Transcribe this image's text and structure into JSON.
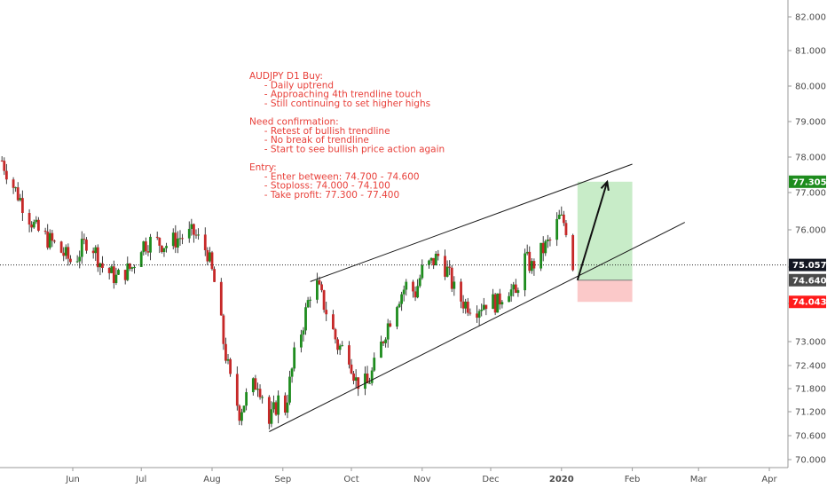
{
  "chart_data": {
    "type": "candlestick",
    "y_axis": {
      "ticks": [
        {
          "label": "82.000",
          "value": 82.0
        },
        {
          "label": "81.000",
          "value": 81.0
        },
        {
          "label": "80.000",
          "value": 80.0
        },
        {
          "label": "79.000",
          "value": 79.0
        },
        {
          "label": "78.000",
          "value": 78.0
        },
        {
          "label": "77.000",
          "value": 77.0
        },
        {
          "label": "76.000",
          "value": 76.0
        },
        {
          "label": "75.000",
          "value": 75.0
        },
        {
          "label": "74.000",
          "value": 74.0
        },
        {
          "label": "73.000",
          "value": 73.0
        },
        {
          "label": "72.400",
          "value": 72.4
        },
        {
          "label": "71.800",
          "value": 71.8
        },
        {
          "label": "71.200",
          "value": 71.2
        },
        {
          "label": "70.600",
          "value": 70.6
        },
        {
          "label": "70.000",
          "value": 70.0
        }
      ]
    },
    "x_axis": {
      "ticks": [
        {
          "label": "Jun",
          "date": "2019-06-01",
          "bold": false
        },
        {
          "label": "Jul",
          "date": "2019-07-01",
          "bold": false
        },
        {
          "label": "Aug",
          "date": "2019-08-01",
          "bold": false
        },
        {
          "label": "Sep",
          "date": "2019-09-01",
          "bold": false
        },
        {
          "label": "Oct",
          "date": "2019-10-01",
          "bold": false
        },
        {
          "label": "Nov",
          "date": "2019-11-01",
          "bold": false
        },
        {
          "label": "Dec",
          "date": "2019-12-01",
          "bold": false
        },
        {
          "label": "2020",
          "date": "2020-01-01",
          "bold": true
        },
        {
          "label": "Feb",
          "date": "2020-02-01",
          "bold": false
        },
        {
          "label": "Mar",
          "date": "2020-03-01",
          "bold": false
        },
        {
          "label": "Apr",
          "date": "2020-04-01",
          "bold": false
        }
      ]
    },
    "price_path": [
      {
        "date": "2019-05-01",
        "close": 77.9
      },
      {
        "date": "2019-05-05",
        "close": 77.3
      },
      {
        "date": "2019-05-10",
        "close": 76.7
      },
      {
        "date": "2019-05-16",
        "close": 76.0
      },
      {
        "date": "2019-05-24",
        "close": 75.6
      },
      {
        "date": "2019-06-01",
        "close": 75.1
      },
      {
        "date": "2019-06-08",
        "close": 75.8
      },
      {
        "date": "2019-06-14",
        "close": 75.0
      },
      {
        "date": "2019-06-20",
        "close": 74.7
      },
      {
        "date": "2019-06-27",
        "close": 75.0
      },
      {
        "date": "2019-07-01",
        "close": 75.6
      },
      {
        "date": "2019-07-06",
        "close": 75.7
      },
      {
        "date": "2019-07-12",
        "close": 75.6
      },
      {
        "date": "2019-07-18",
        "close": 75.8
      },
      {
        "date": "2019-07-24",
        "close": 75.9
      },
      {
        "date": "2019-07-30",
        "close": 75.4
      },
      {
        "date": "2019-08-03",
        "close": 74.3
      },
      {
        "date": "2019-08-06",
        "close": 73.0
      },
      {
        "date": "2019-08-09",
        "close": 72.0
      },
      {
        "date": "2019-08-13",
        "close": 71.2
      },
      {
        "date": "2019-08-17",
        "close": 71.7
      },
      {
        "date": "2019-08-21",
        "close": 72.0
      },
      {
        "date": "2019-08-24",
        "close": 71.5
      },
      {
        "date": "2019-08-26",
        "close": 70.9
      },
      {
        "date": "2019-08-30",
        "close": 71.5
      },
      {
        "date": "2019-09-02",
        "close": 71.3
      },
      {
        "date": "2019-09-06",
        "close": 72.6
      },
      {
        "date": "2019-09-10",
        "close": 73.5
      },
      {
        "date": "2019-09-13",
        "close": 74.3
      },
      {
        "date": "2019-09-16",
        "close": 74.5
      },
      {
        "date": "2019-09-20",
        "close": 73.8
      },
      {
        "date": "2019-09-25",
        "close": 72.9
      },
      {
        "date": "2019-09-30",
        "close": 72.7
      },
      {
        "date": "2019-10-03",
        "close": 72.0
      },
      {
        "date": "2019-10-08",
        "close": 71.9
      },
      {
        "date": "2019-10-12",
        "close": 72.5
      },
      {
        "date": "2019-10-16",
        "close": 73.3
      },
      {
        "date": "2019-10-21",
        "close": 74.1
      },
      {
        "date": "2019-10-25",
        "close": 74.5
      },
      {
        "date": "2019-10-29",
        "close": 74.3
      },
      {
        "date": "2019-11-01",
        "close": 74.9
      },
      {
        "date": "2019-11-05",
        "close": 75.1
      },
      {
        "date": "2019-11-08",
        "close": 75.3
      },
      {
        "date": "2019-11-12",
        "close": 74.9
      },
      {
        "date": "2019-11-16",
        "close": 74.2
      },
      {
        "date": "2019-11-20",
        "close": 74.0
      },
      {
        "date": "2019-11-25",
        "close": 73.9
      },
      {
        "date": "2019-11-30",
        "close": 74.1
      },
      {
        "date": "2019-12-04",
        "close": 74.0
      },
      {
        "date": "2019-12-08",
        "close": 74.5
      },
      {
        "date": "2019-12-12",
        "close": 74.2
      },
      {
        "date": "2019-12-15",
        "close": 75.3
      },
      {
        "date": "2019-12-19",
        "close": 75.0
      },
      {
        "date": "2019-12-23",
        "close": 75.4
      },
      {
        "date": "2019-12-27",
        "close": 75.7
      },
      {
        "date": "2019-12-31",
        "close": 76.3
      },
      {
        "date": "2020-01-02",
        "close": 76.2
      },
      {
        "date": "2020-01-04",
        "close": 75.9
      },
      {
        "date": "2020-01-06",
        "close": 75.057
      }
    ],
    "current_price_line": {
      "value": 75.057,
      "label": "75.057"
    },
    "price_tags": [
      {
        "label": "77.305",
        "value": 77.305,
        "color": "#1e8c1e"
      },
      {
        "label": "75.057",
        "value": 75.057,
        "color": "#131722"
      },
      {
        "label": "74.640",
        "value": 74.64,
        "color": "#4a4a4a"
      },
      {
        "label": "74.043",
        "value": 74.043,
        "color": "#ff1a1a"
      }
    ],
    "position_tool": {
      "entry": 74.64,
      "target": 77.305,
      "stop": 74.043,
      "start_date": "2020-01-08",
      "end_date": "2020-02-01",
      "profit_color": "#c8ecc8",
      "loss_color": "#fbc9c9"
    },
    "trendlines": [
      {
        "name": "upper",
        "start": {
          "date": "2019-09-13",
          "price": 74.6
        },
        "end": {
          "date": "2020-02-01",
          "price": 77.8
        }
      },
      {
        "name": "lower",
        "start": {
          "date": "2019-08-26",
          "price": 70.7
        },
        "end": {
          "date": "2020-02-24",
          "price": 76.2
        }
      }
    ],
    "arrow": {
      "start": {
        "date": "2020-01-08",
        "price": 74.64
      },
      "end": {
        "date": "2020-01-21",
        "price": 77.3
      }
    },
    "annotation": [
      "AUDJPY D1 Buy:",
      "    - Daily uptrend",
      "    - Approaching 4th trendline touch",
      "    - Still continuing to set higher highs",
      "",
      "Need confirmation:",
      "    - Retest of bullish trendline",
      "    - No break of trendline",
      "    - Start to see bullish price action again",
      "",
      "Entry:",
      "    - Enter between: 74.700 - 74.600",
      "    - Stoploss: 74.000 - 74.100",
      "    - Take profit: 77.300 - 77.400"
    ],
    "colors": {
      "up": "#26a69a",
      "up_fill": "#1e8c1e",
      "down": "#c62828",
      "annotation": "#e8403a"
    }
  }
}
